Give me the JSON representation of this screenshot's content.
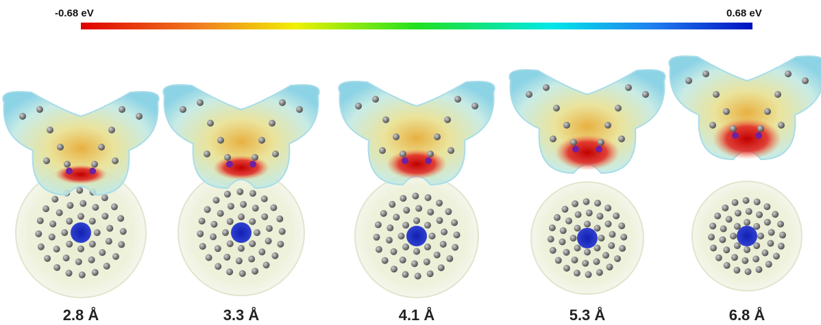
{
  "colorbar": {
    "min_label": "-0.68 eV",
    "max_label": "0.68 eV"
  },
  "panels": [
    {
      "label": "2.8 Å"
    },
    {
      "label": "3.3 Å"
    },
    {
      "label": "4.1 Å"
    },
    {
      "label": "5.3 Å"
    },
    {
      "label": "6.8 Å"
    }
  ]
}
